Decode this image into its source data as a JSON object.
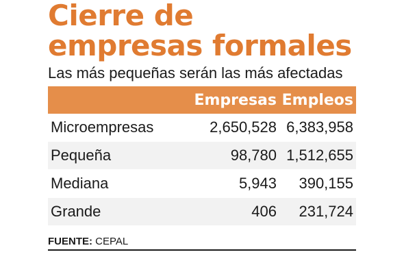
{
  "chart_data": {
    "type": "table",
    "title": "Cierre de empresas formales",
    "subtitle": "Las más pequeñas serán las más afectadas",
    "columns": [
      "",
      "Empresas",
      "Empleos"
    ],
    "rows": [
      {
        "name": "Microempresas",
        "empresas": "2,650,528",
        "empleos": "6,383,958"
      },
      {
        "name": "Pequeña",
        "empresas": "98,780",
        "empleos": "1,512,655"
      },
      {
        "name": "Mediana",
        "empresas": "5,943",
        "empleos": "390,155"
      },
      {
        "name": "Grande",
        "empresas": "406",
        "empleos": "231,724"
      }
    ],
    "source_label": "FUENTE:",
    "source_text": "CEPAL"
  },
  "colors": {
    "accent": "#e07b31",
    "header_bg": "#e58e4a",
    "row_shade": "#f2f2f2"
  }
}
